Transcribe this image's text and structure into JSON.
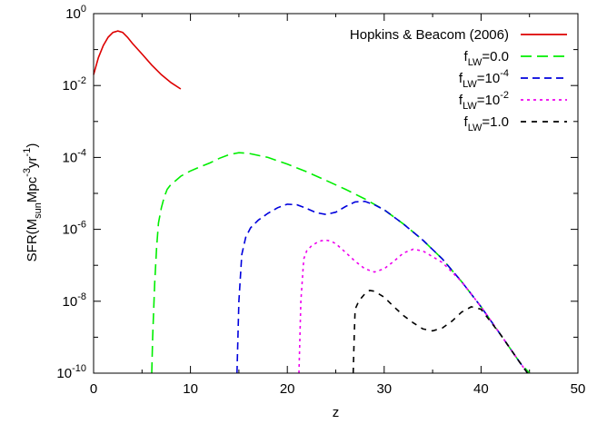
{
  "chart_data": {
    "type": "line",
    "xlabel": "z",
    "ylabel": {
      "base": "SFR(M",
      "sub1": "sun",
      "mid": "Mpc",
      "sup1": "-3",
      "mid2": "yr",
      "sup2": "-1",
      "end": ")"
    },
    "xlim": [
      0,
      50
    ],
    "ylim": [
      1e-10,
      1
    ],
    "yscale": "log",
    "x_ticks": [
      "0",
      "10",
      "20",
      "30",
      "40",
      "50"
    ],
    "x_tick_values": [
      0,
      10,
      20,
      30,
      40,
      50
    ],
    "y_ticks": [
      {
        "value": 1.0,
        "base": "10",
        "exp": "0"
      },
      {
        "value": 0.01,
        "base": "10",
        "exp": "-2"
      },
      {
        "value": 0.0001,
        "base": "10",
        "exp": "-4"
      },
      {
        "value": 1e-06,
        "base": "10",
        "exp": "-6"
      },
      {
        "value": 1e-08,
        "base": "10",
        "exp": "-8"
      },
      {
        "value": 1e-10,
        "base": "10",
        "exp": "-10"
      }
    ],
    "legend_position": "top-right",
    "series": [
      {
        "name": "Hopkins & Beacom (2006)",
        "label": {
          "pre": "Hopkins & Beacom (2006)",
          "sub": "",
          "mid": "",
          "sup": ""
        },
        "color": "#dd0000",
        "dash": "solid",
        "x": [
          0,
          0.5,
          1,
          1.5,
          2,
          2.5,
          3,
          3.5,
          4,
          5,
          6,
          7,
          8,
          9
        ],
        "y": [
          0.02,
          0.06,
          0.13,
          0.22,
          0.3,
          0.33,
          0.3,
          0.22,
          0.15,
          0.075,
          0.037,
          0.02,
          0.012,
          0.008
        ]
      },
      {
        "name": "f_LW=0.0",
        "label": {
          "pre": "f",
          "sub": "LW",
          "mid": "=0.0",
          "sup": ""
        },
        "color": "#00ee00",
        "dash": "long",
        "x": [
          6.0,
          6.1,
          6.3,
          6.5,
          6.7,
          7.0,
          7.3,
          7.6,
          8.0,
          8.5,
          9.0,
          9.5,
          10,
          11,
          12,
          13,
          14,
          15,
          16,
          18,
          20,
          22,
          24,
          26,
          28,
          30,
          32,
          34,
          36,
          38,
          40,
          42,
          44,
          45
        ],
        "y": [
          1e-10,
          1e-09,
          3e-08,
          3e-07,
          1.5e-06,
          4e-06,
          8e-06,
          1.3e-05,
          1.8e-05,
          2.3e-05,
          3e-05,
          3.6e-05,
          4.2e-05,
          5.5e-05,
          7e-05,
          9.5e-05,
          0.00012,
          0.000135,
          0.00013,
          0.0001,
          6.5e-05,
          4e-05,
          2.3e-05,
          1.3e-05,
          7e-06,
          3.5e-06,
          1.4e-06,
          5e-07,
          1.5e-07,
          3.5e-08,
          7e-09,
          1.2e-09,
          2e-10,
          1e-10
        ]
      },
      {
        "name": "f_LW=10^-4",
        "label": {
          "pre": "f",
          "sub": "LW",
          "mid": "=10",
          "sup": "-4"
        },
        "color": "#0000dd",
        "dash": "medium",
        "x": [
          14.8,
          15.0,
          15.3,
          15.7,
          16.2,
          17,
          18,
          19,
          20,
          21,
          22,
          23,
          24,
          25,
          26,
          27,
          28,
          29,
          30,
          32,
          34,
          36,
          38,
          40,
          42,
          44,
          44.8
        ],
        "y": [
          1e-10,
          1e-08,
          2e-07,
          6e-07,
          1.1e-06,
          1.8e-06,
          2.8e-06,
          4e-06,
          5e-06,
          4.8e-06,
          3.8e-06,
          2.9e-06,
          2.6e-06,
          3e-06,
          4.3e-06,
          5.8e-06,
          6e-06,
          4.8e-06,
          3.5e-06,
          1.4e-06,
          5e-07,
          1.5e-07,
          3.5e-08,
          7e-09,
          1.2e-09,
          2e-10,
          1e-10
        ]
      },
      {
        "name": "f_LW=10^-2",
        "label": {
          "pre": "f",
          "sub": "LW",
          "mid": "=10",
          "sup": "-2"
        },
        "color": "#ee00ee",
        "dash": "dotted",
        "x": [
          21.2,
          21.4,
          21.7,
          22.0,
          22.5,
          23,
          23.5,
          24,
          24.5,
          25,
          26,
          27,
          28,
          29,
          30,
          31,
          32,
          33,
          34,
          36,
          38,
          40,
          42,
          44,
          44.8
        ],
        "y": [
          1e-10,
          1e-08,
          1.5e-07,
          2.5e-07,
          3.5e-07,
          4.2e-07,
          4.8e-07,
          5e-07,
          4.7e-07,
          4e-07,
          2.3e-07,
          1.3e-07,
          8e-08,
          6.5e-08,
          8e-08,
          1.3e-07,
          2.2e-07,
          2.8e-07,
          2.5e-07,
          1.2e-07,
          3.5e-08,
          7e-09,
          1.2e-09,
          2e-10,
          1e-10
        ]
      },
      {
        "name": "f_LW=1.0",
        "label": {
          "pre": "f",
          "sub": "LW",
          "mid": "=1.0",
          "sup": ""
        },
        "color": "#000000",
        "dash": "short",
        "x": [
          26.8,
          26.9,
          27.0,
          27.3,
          27.6,
          28,
          28.5,
          29,
          30,
          31,
          32,
          33,
          34,
          35,
          36,
          37,
          38,
          39,
          40,
          42,
          44,
          44.8
        ],
        "y": [
          1e-10,
          1e-09,
          6e-09,
          9e-09,
          1.2e-08,
          1.6e-08,
          2e-08,
          1.9e-08,
          1.3e-08,
          7e-09,
          4e-09,
          2.5e-09,
          1.7e-09,
          1.5e-09,
          1.8e-09,
          2.8e-09,
          5e-09,
          7e-09,
          6e-09,
          1.2e-09,
          2e-10,
          1e-10
        ]
      }
    ]
  }
}
